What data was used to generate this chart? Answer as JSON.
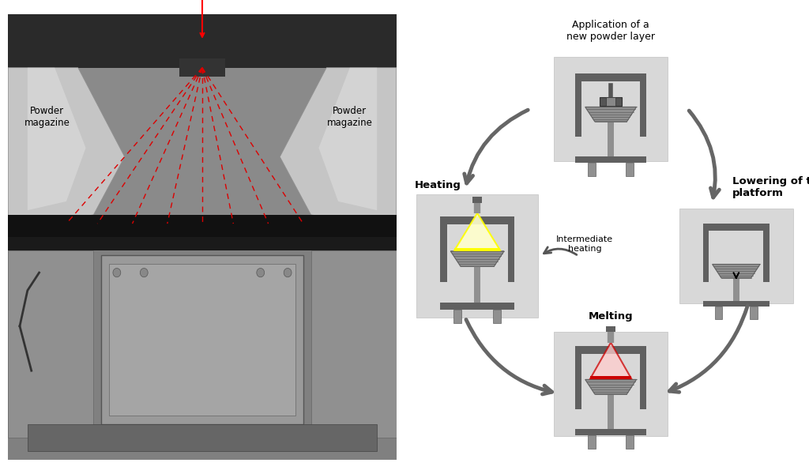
{
  "bg_color": "#ffffff",
  "right_labels": {
    "application": "Application of a\nnew powder layer",
    "heating": "Heating",
    "lowering": "Lowering of the\nplatform",
    "melting": "Melting",
    "intermediate": "Intermediate\nheating"
  },
  "panel_bg": "#dcdcdc",
  "arrow_color": "#666666",
  "dg": "#5a5a5a",
  "mg": "#888888",
  "lg": "#b0b0b0",
  "yellow_color": "#ffff00",
  "yellow_light": "#fffff0",
  "red_color": "#cc0000",
  "red_light": "#ffd0d0",
  "beam_color": "#cc0000"
}
